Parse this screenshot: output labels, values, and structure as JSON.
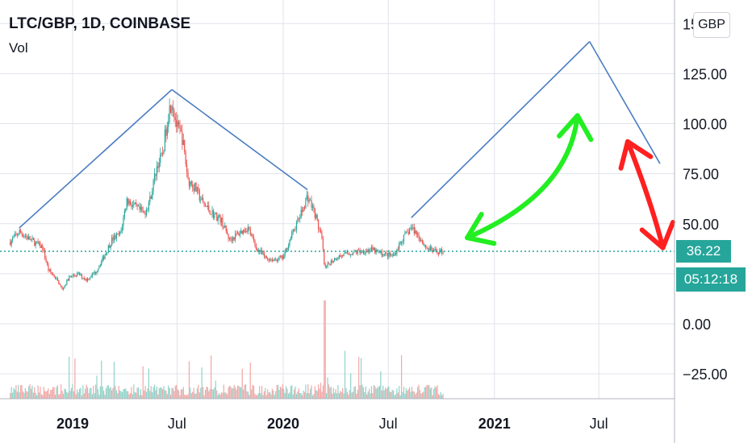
{
  "header": {
    "symbol_line": "LTC/GBP, 1D, COINBASE",
    "volume_label": "Vol",
    "currency_button": "GBP"
  },
  "price_badge": "36.22",
  "countdown_badge": "05:12:18",
  "colors": {
    "up": "#26a69a",
    "down": "#ef5350",
    "trendline": "#4a7cc2",
    "green_arrow": "#22ee22",
    "red_arrow": "#ff2020",
    "grid": "#e0e3eb"
  },
  "chart_data": {
    "type": "candlestick",
    "y_axis": {
      "ticks": [
        "125.00",
        "100.00",
        "75.00",
        "50.00",
        "0.00",
        "−25.00"
      ],
      "tick_values": [
        125,
        100,
        75,
        50,
        0,
        -25
      ],
      "cut_off_top_label": "15"
    },
    "x_axis": {
      "ticks": [
        {
          "label": "2019",
          "date": "2019-01-01",
          "bold": true
        },
        {
          "label": "Jul",
          "date": "2019-07-01",
          "bold": false
        },
        {
          "label": "2020",
          "date": "2020-01-01",
          "bold": true
        },
        {
          "label": "Jul",
          "date": "2020-07-01",
          "bold": false
        },
        {
          "label": "2021",
          "date": "2021-01-01",
          "bold": true
        },
        {
          "label": "Jul",
          "date": "2021-07-01",
          "bold": false
        }
      ]
    },
    "last_price": 36.22,
    "price_path": [
      [
        "2018-09-15",
        41
      ],
      [
        "2018-10-01",
        46
      ],
      [
        "2018-10-20",
        42
      ],
      [
        "2018-11-10",
        38
      ],
      [
        "2018-11-20",
        27
      ],
      [
        "2018-12-05",
        22
      ],
      [
        "2018-12-14",
        17
      ],
      [
        "2018-12-25",
        23
      ],
      [
        "2019-01-10",
        25
      ],
      [
        "2019-01-25",
        22
      ],
      [
        "2019-02-10",
        26
      ],
      [
        "2019-02-25",
        34
      ],
      [
        "2019-03-10",
        42
      ],
      [
        "2019-03-25",
        45
      ],
      [
        "2019-04-05",
        62
      ],
      [
        "2019-04-20",
        58
      ],
      [
        "2019-05-05",
        55
      ],
      [
        "2019-05-15",
        62
      ],
      [
        "2019-05-28",
        80
      ],
      [
        "2019-06-05",
        83
      ],
      [
        "2019-06-15",
        104
      ],
      [
        "2019-06-22",
        112
      ],
      [
        "2019-07-01",
        98
      ],
      [
        "2019-07-10",
        93
      ],
      [
        "2019-07-20",
        72
      ],
      [
        "2019-08-01",
        68
      ],
      [
        "2019-08-15",
        60
      ],
      [
        "2019-09-01",
        55
      ],
      [
        "2019-09-15",
        52
      ],
      [
        "2019-09-30",
        42
      ],
      [
        "2019-10-15",
        45
      ],
      [
        "2019-11-01",
        48
      ],
      [
        "2019-11-15",
        38
      ],
      [
        "2019-12-01",
        33
      ],
      [
        "2019-12-15",
        32
      ],
      [
        "2020-01-01",
        33
      ],
      [
        "2020-01-15",
        44
      ],
      [
        "2020-02-01",
        55
      ],
      [
        "2020-02-12",
        64
      ],
      [
        "2020-02-25",
        55
      ],
      [
        "2020-03-08",
        42
      ],
      [
        "2020-03-13",
        27
      ],
      [
        "2020-03-20",
        30
      ],
      [
        "2020-04-01",
        33
      ],
      [
        "2020-04-20",
        35
      ],
      [
        "2020-05-10",
        36
      ],
      [
        "2020-06-01",
        37
      ],
      [
        "2020-06-20",
        35
      ],
      [
        "2020-07-10",
        34
      ],
      [
        "2020-07-25",
        42
      ],
      [
        "2020-08-10",
        48
      ],
      [
        "2020-08-20",
        45
      ],
      [
        "2020-09-05",
        38
      ],
      [
        "2020-09-20",
        36
      ],
      [
        "2020-10-05",
        36.22
      ]
    ],
    "drawings": {
      "trendlines": [
        {
          "from": [
            "2018-10-01",
            48
          ],
          "to": [
            "2019-06-22",
            117
          ]
        },
        {
          "from": [
            "2019-06-22",
            117
          ],
          "to": [
            "2020-02-12",
            67
          ]
        },
        {
          "from": [
            "2020-08-10",
            53
          ],
          "to": [
            "2021-06-15",
            141
          ]
        },
        {
          "from": [
            "2021-06-15",
            141
          ],
          "to": [
            "2021-10-15",
            80
          ]
        }
      ],
      "green_arrow": {
        "start": [
          "2020-11-15",
          43
        ],
        "ctrl": [
          "2021-05-10",
          65
        ],
        "end": [
          "2021-05-25",
          104
        ]
      },
      "red_arrow": {
        "start": [
          "2021-08-20",
          91
        ],
        "ctrl": [
          "2021-10-01",
          60
        ],
        "end": [
          "2021-10-20",
          38
        ]
      }
    }
  }
}
